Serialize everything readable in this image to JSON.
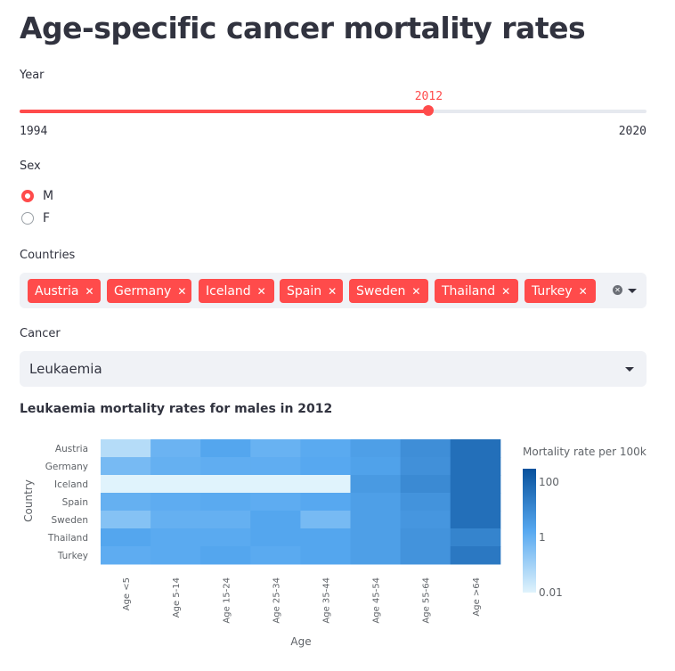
{
  "page": {
    "title": "Age-specific cancer mortality rates"
  },
  "year_slider": {
    "label": "Year",
    "min_label": "1994",
    "max_label": "2020",
    "value_label": "2012",
    "min": 1994,
    "max": 2020,
    "value": 2012,
    "accent": "#ff4b4b"
  },
  "sex": {
    "label": "Sex",
    "options": [
      "M",
      "F"
    ],
    "selected": "M"
  },
  "countries": {
    "label": "Countries",
    "selected": [
      "Austria",
      "Germany",
      "Iceland",
      "Spain",
      "Sweden",
      "Thailand",
      "Turkey"
    ],
    "clear_icon": "clear-icon",
    "dropdown_icon": "chevron-down-icon"
  },
  "cancer": {
    "label": "Cancer",
    "value": "Leukaemia",
    "dropdown_icon": "chevron-down-icon"
  },
  "chart_data": {
    "type": "heatmap",
    "title": "Leukaemia mortality rates for males in 2012",
    "xlabel": "Age",
    "ylabel": "Country",
    "x": [
      "Age <5",
      "Age 5-14",
      "Age 15-24",
      "Age 25-34",
      "Age 35-44",
      "Age 45-54",
      "Age 55-64",
      "Age >64"
    ],
    "y": [
      "Austria",
      "Germany",
      "Iceland",
      "Spain",
      "Sweden",
      "Thailand",
      "Turkey"
    ],
    "values": [
      [
        0.05,
        0.8,
        2,
        0.9,
        1.5,
        3,
        8,
        50
      ],
      [
        0.5,
        1,
        1.2,
        1.2,
        1.7,
        2.5,
        7,
        50
      ],
      [
        0.01,
        0.01,
        0.01,
        0.01,
        0.01,
        4,
        10,
        50
      ],
      [
        1,
        1.3,
        1.5,
        1.3,
        1.7,
        3,
        6,
        50
      ],
      [
        0.3,
        1,
        1,
        2,
        0.5,
        3,
        5,
        50
      ],
      [
        2,
        1.5,
        1.5,
        2,
        2,
        3,
        6,
        15
      ],
      [
        1.3,
        1.5,
        2,
        1.5,
        2,
        3,
        6,
        30
      ]
    ],
    "scale": "log",
    "colorbar": {
      "title": "Mortality rate per 100k",
      "ticks": [
        "100",
        "1",
        "0.01"
      ],
      "range": [
        0.01,
        300
      ]
    },
    "colors": {
      "low": "#e0f3fc",
      "high": "#08519c"
    }
  }
}
